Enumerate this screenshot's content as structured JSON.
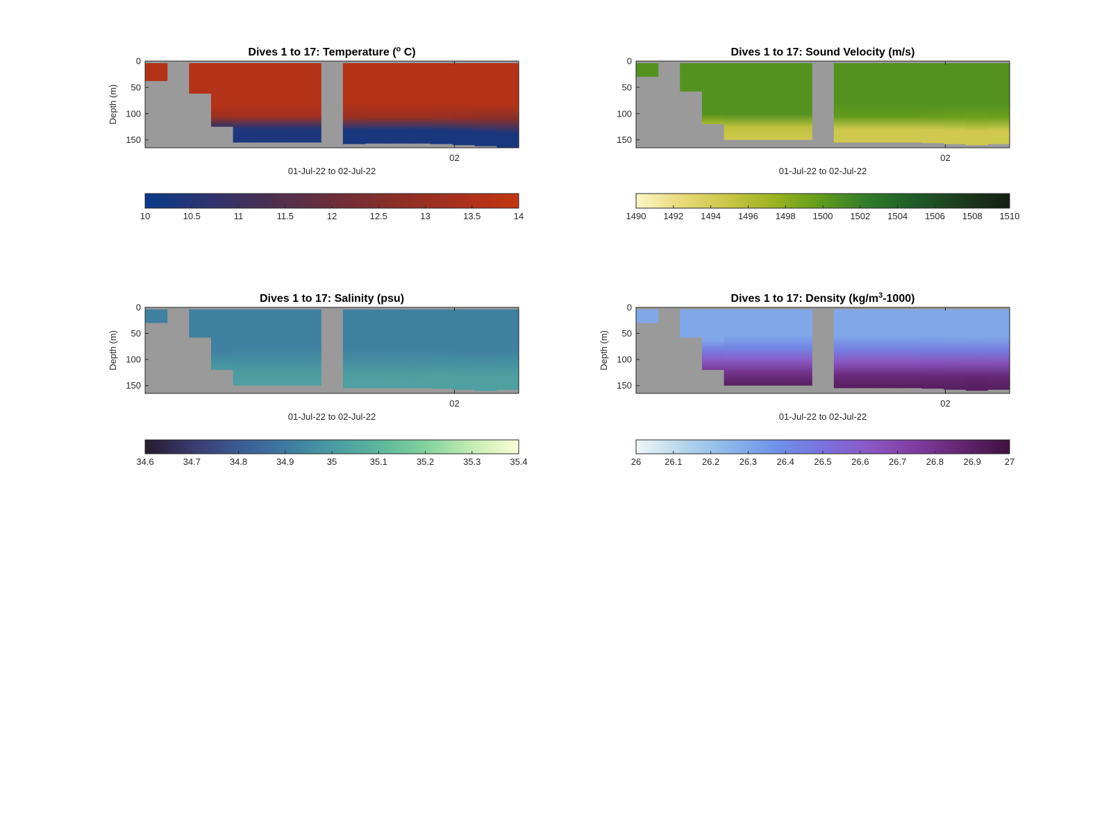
{
  "chart_data": [
    {
      "type": "heatmap",
      "title_main": "Dives 1 to 17: Temperature (",
      "title_sup": "o",
      "title_end": " C)",
      "xlabel": "01-Jul-22 to 02-Jul-22",
      "ylabel": "Depth (m)",
      "x_tick_labels": [
        "02"
      ],
      "y_ticks": [
        0,
        50,
        100,
        150
      ],
      "ylim": [
        0,
        165
      ],
      "colorbar": {
        "ticks": [
          "10",
          "10.5",
          "11",
          "11.5",
          "12",
          "12.5",
          "13",
          "13.5",
          "14"
        ],
        "range": [
          10,
          14
        ],
        "colors": [
          "#0a3a8a",
          "#2d3470",
          "#4b3050",
          "#6b2e3a",
          "#8a2f28",
          "#a8301c",
          "#c43512"
        ]
      },
      "field": {
        "surface": 13.6,
        "mixed_depth": 100,
        "deep": 10.3,
        "deep_depth": 130
      },
      "dives": [
        {
          "max_depth": 38
        },
        {
          "max_depth": 0
        },
        {
          "max_depth": 62
        },
        {
          "max_depth": 125
        },
        {
          "max_depth": 155
        },
        {
          "max_depth": 155
        },
        {
          "max_depth": 155
        },
        {
          "max_depth": 155
        },
        {
          "max_depth": 0
        },
        {
          "max_depth": 158
        },
        {
          "max_depth": 157
        },
        {
          "max_depth": 157
        },
        {
          "max_depth": 157
        },
        {
          "max_depth": 158
        },
        {
          "max_depth": 160
        },
        {
          "max_depth": 162
        },
        {
          "max_depth": 165
        }
      ]
    },
    {
      "type": "heatmap",
      "title_main": "Dives 1 to 17: Sound Velocity (m/s)",
      "title_sup": "",
      "title_end": "",
      "xlabel": "01-Jul-22 to 02-Jul-22",
      "ylabel": "",
      "x_tick_labels": [
        "02"
      ],
      "y_ticks": [
        0,
        50,
        100,
        150
      ],
      "ylim": [
        0,
        165
      ],
      "colorbar": {
        "ticks": [
          "1490",
          "1492",
          "1494",
          "1496",
          "1498",
          "1500",
          "1502",
          "1504",
          "1506",
          "1508",
          "1510"
        ],
        "range": [
          1490,
          1510
        ],
        "colors": [
          "#fdf6c8",
          "#e8d878",
          "#c9c545",
          "#98b21e",
          "#5f9a1c",
          "#2f7a2a",
          "#1f5a28",
          "#1c3a1c",
          "#141e14"
        ]
      },
      "field": {
        "surface": 1500.6,
        "mixed_depth": 100,
        "deep": 1494.5,
        "deep_depth": 130
      },
      "dives": [
        {
          "max_depth": 30
        },
        {
          "max_depth": 0
        },
        {
          "max_depth": 58
        },
        {
          "max_depth": 120
        },
        {
          "max_depth": 150
        },
        {
          "max_depth": 150
        },
        {
          "max_depth": 150
        },
        {
          "max_depth": 150
        },
        {
          "max_depth": 0
        },
        {
          "max_depth": 155
        },
        {
          "max_depth": 155
        },
        {
          "max_depth": 155
        },
        {
          "max_depth": 155
        },
        {
          "max_depth": 156
        },
        {
          "max_depth": 158
        },
        {
          "max_depth": 160
        },
        {
          "max_depth": 158
        }
      ]
    },
    {
      "type": "heatmap",
      "title_main": "Dives 1 to 17: Salinity (psu)",
      "title_sup": "",
      "title_end": "",
      "xlabel": "01-Jul-22 to 02-Jul-22",
      "ylabel": "Depth (m)",
      "x_tick_labels": [
        "02"
      ],
      "y_ticks": [
        0,
        50,
        100,
        150
      ],
      "ylim": [
        0,
        165
      ],
      "colorbar": {
        "ticks": [
          "34.6",
          "34.7",
          "34.8",
          "34.9",
          "35",
          "35.1",
          "35.2",
          "35.3",
          "35.4"
        ],
        "range": [
          34.6,
          35.4
        ],
        "colors": [
          "#261c2e",
          "#3a3a6e",
          "#3c5a94",
          "#3e7aa0",
          "#4a9aa2",
          "#5cb69c",
          "#82d29c",
          "#c4ecb4",
          "#fbfcd6"
        ]
      },
      "field": {
        "surface": 34.92,
        "mixed_depth": 80,
        "deep": 35.02,
        "deep_depth": 130
      },
      "dives": [
        {
          "max_depth": 30
        },
        {
          "max_depth": 0
        },
        {
          "max_depth": 58
        },
        {
          "max_depth": 120
        },
        {
          "max_depth": 150
        },
        {
          "max_depth": 150
        },
        {
          "max_depth": 150
        },
        {
          "max_depth": 150
        },
        {
          "max_depth": 0
        },
        {
          "max_depth": 155
        },
        {
          "max_depth": 155
        },
        {
          "max_depth": 155
        },
        {
          "max_depth": 155
        },
        {
          "max_depth": 156
        },
        {
          "max_depth": 158
        },
        {
          "max_depth": 160
        },
        {
          "max_depth": 158
        }
      ]
    },
    {
      "type": "heatmap",
      "title_main": "Dives 1 to 17: Density (kg/m",
      "title_sup": "3",
      "title_end": "-1000)",
      "xlabel": "01-Jul-22 to 02-Jul-22",
      "ylabel": "Depth (m)",
      "x_tick_labels": [
        "02"
      ],
      "y_ticks": [
        0,
        50,
        100,
        150
      ],
      "ylim": [
        0,
        165
      ],
      "colorbar": {
        "ticks": [
          "26",
          "26.1",
          "26.2",
          "26.3",
          "26.4",
          "26.5",
          "26.6",
          "26.7",
          "26.8",
          "26.9",
          "27"
        ],
        "range": [
          26,
          27
        ],
        "colors": [
          "#eef6f6",
          "#b6d6ec",
          "#8cb6ea",
          "#6e92e8",
          "#7a72dc",
          "#8a58c4",
          "#7e3c9e",
          "#62246e",
          "#3e1240"
        ]
      },
      "field": {
        "surface": 26.3,
        "mixed_depth": 60,
        "deep": 26.92,
        "deep_depth": 140
      },
      "dives": [
        {
          "max_depth": 30
        },
        {
          "max_depth": 0
        },
        {
          "max_depth": 58
        },
        {
          "max_depth": 120
        },
        {
          "max_depth": 150
        },
        {
          "max_depth": 150
        },
        {
          "max_depth": 150
        },
        {
          "max_depth": 150
        },
        {
          "max_depth": 0
        },
        {
          "max_depth": 155
        },
        {
          "max_depth": 155
        },
        {
          "max_depth": 155
        },
        {
          "max_depth": 155
        },
        {
          "max_depth": 156
        },
        {
          "max_depth": 158
        },
        {
          "max_depth": 160
        },
        {
          "max_depth": 158
        }
      ]
    }
  ]
}
